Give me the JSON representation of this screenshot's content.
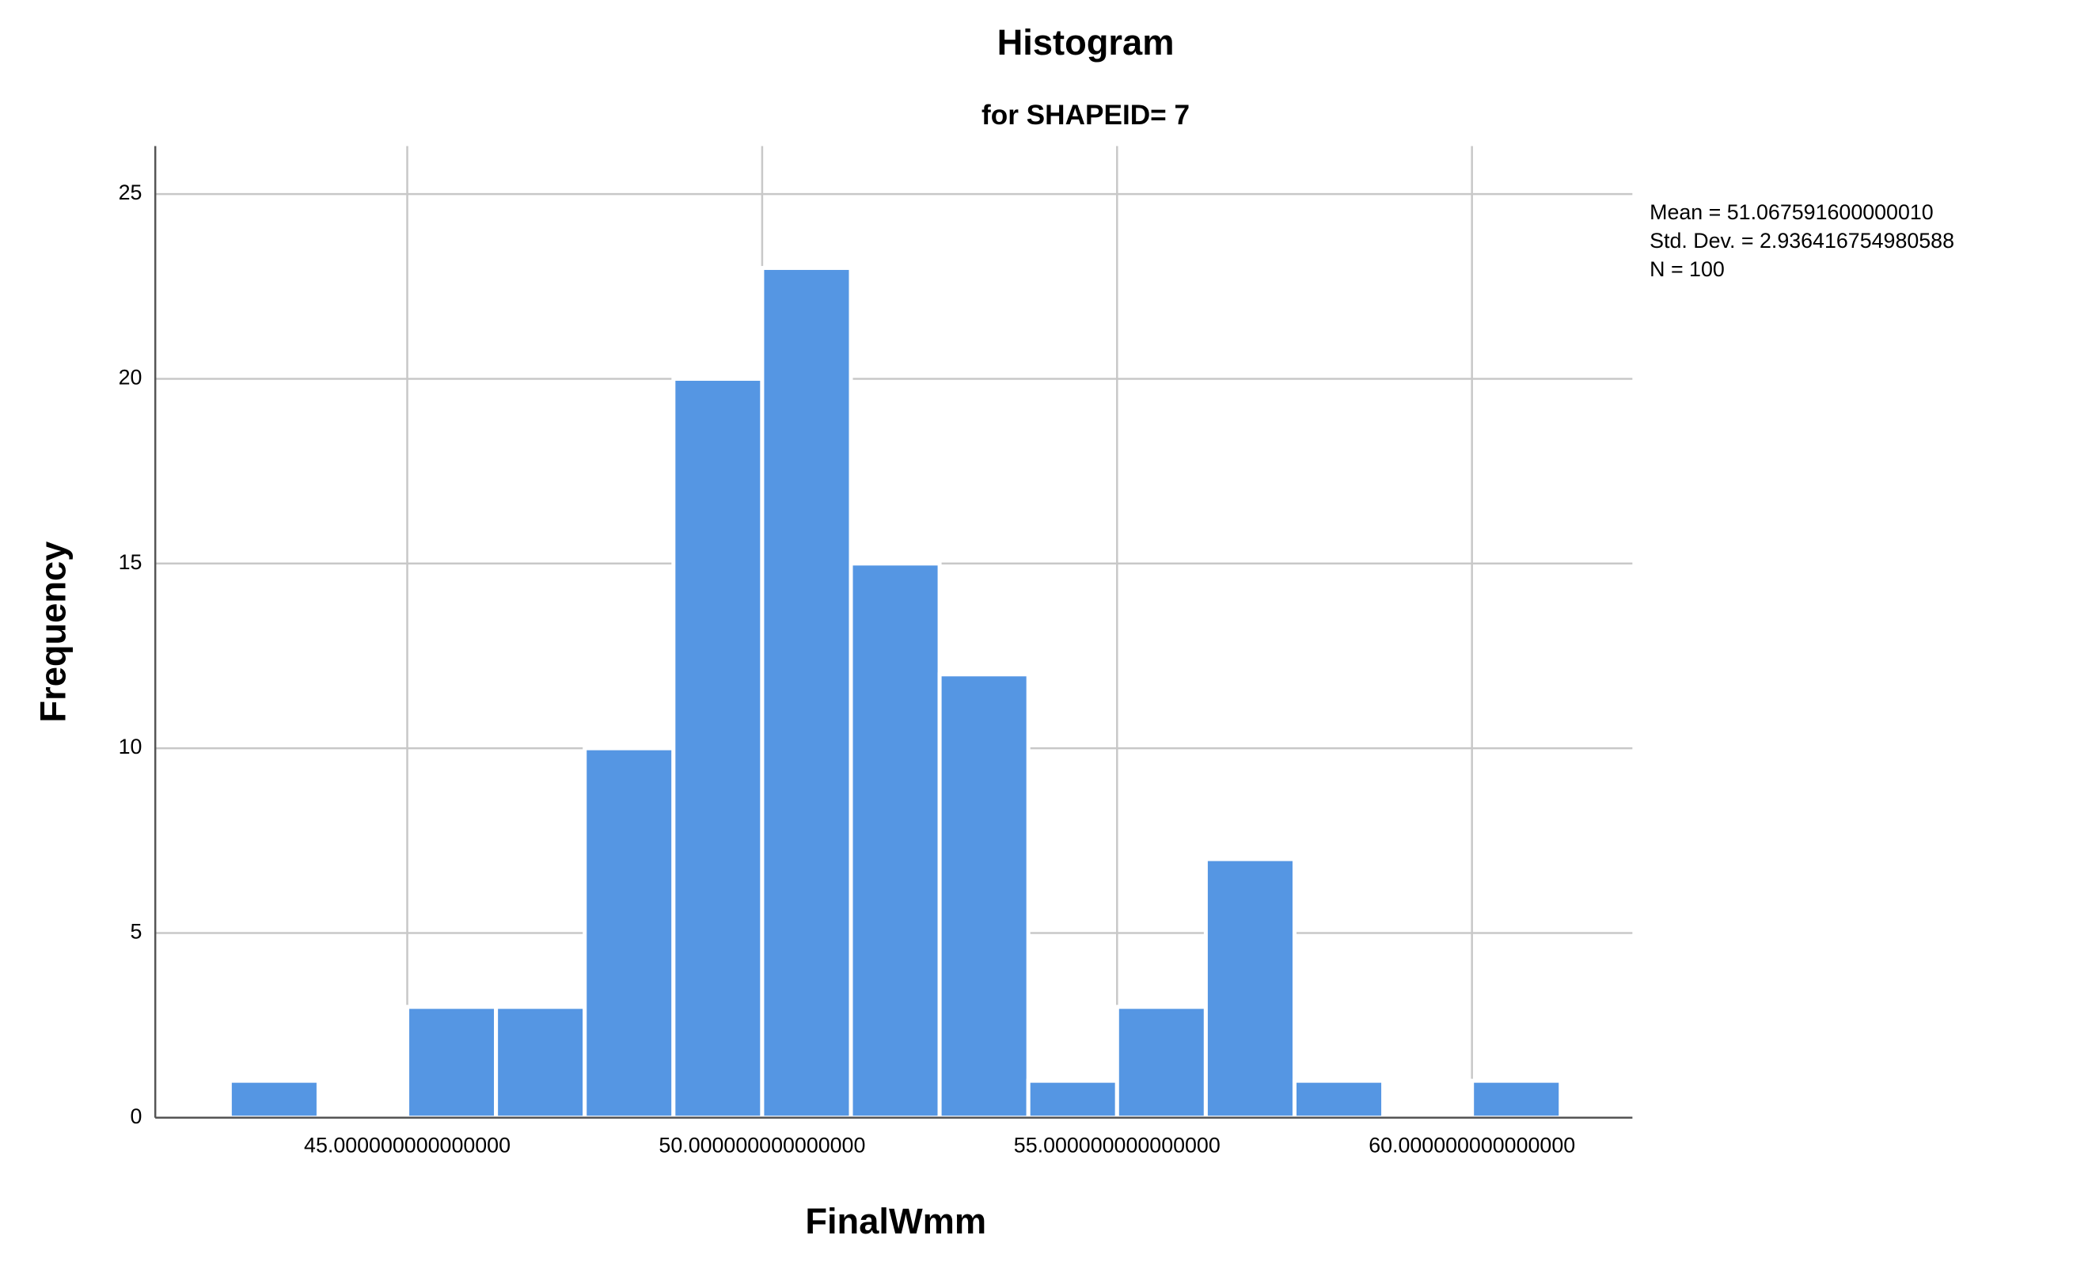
{
  "chart_data": {
    "type": "histogram",
    "title": "Histogram",
    "subtitle": "for SHAPEID= 7",
    "x_label": "FinalWmm",
    "y_label": "Frequency",
    "bins": [
      42.5,
      43.75,
      45,
      46.25,
      47.5,
      48.75,
      50,
      51.25,
      52.5,
      53.75,
      55,
      56.25,
      57.5,
      58.75,
      60,
      61.25
    ],
    "values": [
      1,
      0,
      3,
      3,
      10,
      20,
      23,
      15,
      12,
      1,
      3,
      7,
      1,
      0,
      1
    ],
    "color": "#5596e3",
    "xlim": [
      41.45,
      62.26
    ],
    "ylim": [
      0,
      26.3
    ],
    "xticks": [
      {
        "value": 45,
        "label": "45.000000000000000"
      },
      {
        "value": 50,
        "label": "50.000000000000000"
      },
      {
        "value": 55,
        "label": "55.000000000000000"
      },
      {
        "value": 60,
        "label": "60.000000000000000"
      }
    ],
    "yticks": [
      0,
      5,
      10,
      15,
      20,
      25
    ],
    "grid": true,
    "annotations": [
      "Mean = 51.067591600000010",
      "Std. Dev. = 2.936416754980588",
      "N = 100"
    ]
  }
}
